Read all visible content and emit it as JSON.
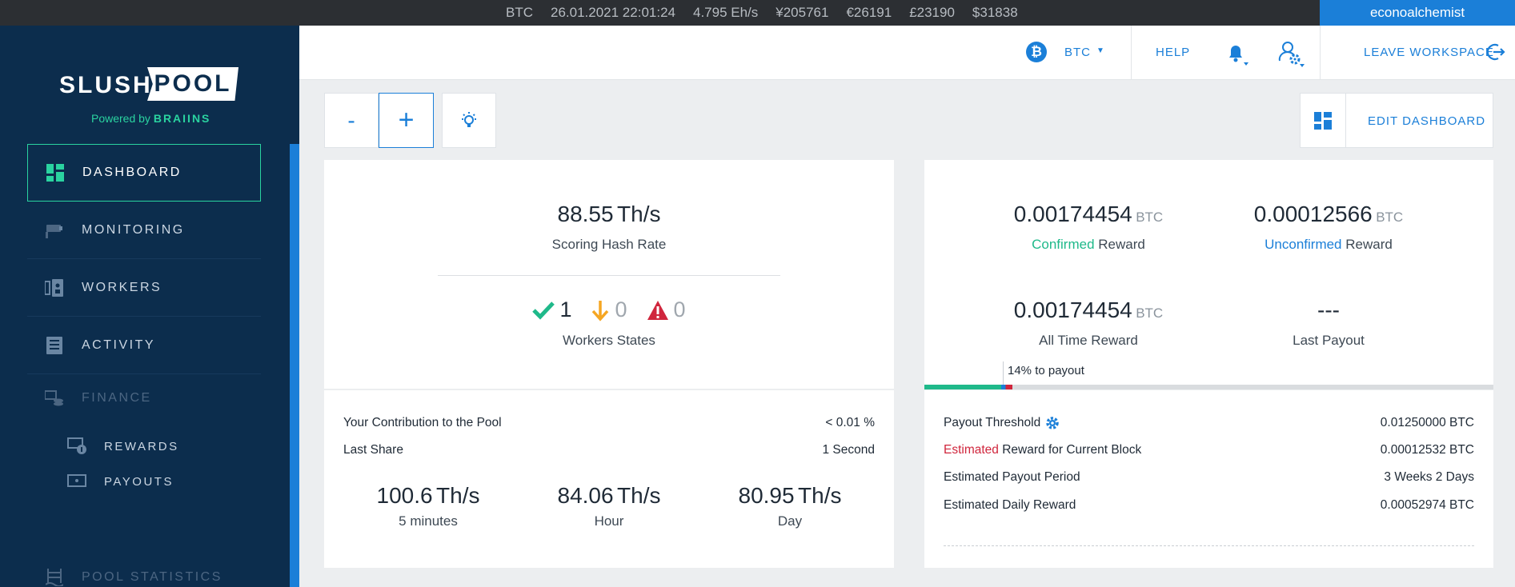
{
  "ticker": {
    "coin": "BTC",
    "datetime": "26.01.2021 22:01:24",
    "pool_hashrate": "4.795 Eh/s",
    "price_jpy": "¥205761",
    "price_eur": "€26191",
    "price_gbp": "£23190",
    "price_usd": "$31838",
    "username": "econoalchemist"
  },
  "logo": {
    "part1": "SLUSH",
    "part2": "POOL",
    "powered_prefix": "Powered by",
    "powered_brand": "BRAIINS"
  },
  "sidebar": {
    "dashboard": "DASHBOARD",
    "monitoring": "MONITORING",
    "workers": "WORKERS",
    "activity": "ACTIVITY",
    "finance": "FINANCE",
    "rewards": "REWARDS",
    "payouts": "PAYOUTS",
    "pool_statistics": "POOL STATISTICS"
  },
  "header": {
    "coin_symbol": "₿",
    "coin": "BTC",
    "help": "HELP",
    "leave_workspace": "LEAVE WORKSPACE"
  },
  "toolbar": {
    "minus": "-",
    "plus": "+",
    "edit_dashboard": "EDIT DASHBOARD"
  },
  "hashrate_card": {
    "scoring_value": "88.55",
    "scoring_unit": "Th/s",
    "scoring_label": "Scoring Hash Rate",
    "workers_ok": "1",
    "workers_low": "0",
    "workers_off": "0",
    "workers_label": "Workers States",
    "contribution_label": "Your Contribution to the Pool",
    "contribution_value": "< 0.01 %",
    "last_share_label": "Last Share",
    "last_share_value": "1 Second",
    "rate_5m_value": "100.6",
    "rate_5m_unit": "Th/s",
    "rate_5m_label": "5 minutes",
    "rate_hour_value": "84.06",
    "rate_hour_unit": "Th/s",
    "rate_hour_label": "Hour",
    "rate_day_value": "80.95",
    "rate_day_unit": "Th/s",
    "rate_day_label": "Day"
  },
  "reward_card": {
    "confirmed_value": "0.00174454",
    "confirmed_unit": "BTC",
    "confirmed_word": "Confirmed",
    "confirmed_suffix": "Reward",
    "unconfirmed_value": "0.00012566",
    "unconfirmed_unit": "BTC",
    "unconfirmed_word": "Unconfirmed",
    "unconfirmed_suffix": "Reward",
    "alltime_value": "0.00174454",
    "alltime_unit": "BTC",
    "alltime_label": "All Time Reward",
    "last_payout_value": "---",
    "last_payout_label": "Last Payout",
    "payout_progress_label": "14% to payout",
    "payout_progress_fraction": 0.14,
    "threshold_label": "Payout Threshold",
    "threshold_value": "0.01250000 BTC",
    "est_block_word": "Estimated",
    "est_block_suffix": "Reward for Current Block",
    "est_block_value": "0.00012532 BTC",
    "est_period_label": "Estimated Payout Period",
    "est_period_value": "3 Weeks 2 Days",
    "est_daily_label": "Estimated Daily Reward",
    "est_daily_value": "0.00052974 BTC"
  },
  "colors": {
    "sidebar_bg": "#0c2d4d",
    "accent_blue": "#1b7fd8",
    "accent_green": "#2ad3a0",
    "confirmed_green": "#1fb98a",
    "warning_orange": "#f5a623",
    "error_red": "#d0263d"
  }
}
